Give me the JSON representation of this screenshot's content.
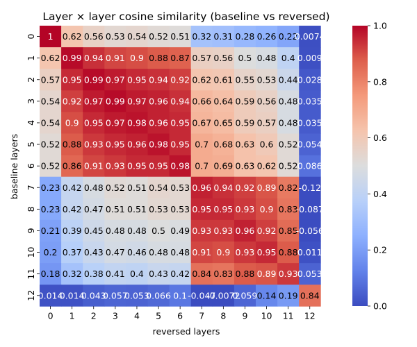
{
  "chart_data": {
    "type": "heatmap",
    "title": "Layer × layer cosine similarity (baseline vs reversed)",
    "xlabel": "reversed layers",
    "ylabel": "baseline layers",
    "x_categories": [
      "0",
      "1",
      "2",
      "3",
      "4",
      "5",
      "6",
      "7",
      "8",
      "9",
      "10",
      "11",
      "12"
    ],
    "y_categories": [
      "0",
      "1",
      "2",
      "3",
      "4",
      "5",
      "6",
      "7",
      "8",
      "9",
      "10",
      "11",
      "12"
    ],
    "values": [
      [
        1,
        0.62,
        0.56,
        0.53,
        0.54,
        0.52,
        0.51,
        0.32,
        0.31,
        0.28,
        0.26,
        0.22,
        0.0074
      ],
      [
        0.62,
        0.99,
        0.94,
        0.91,
        0.9,
        0.88,
        0.87,
        0.57,
        0.56,
        0.5,
        0.48,
        0.4,
        0.009
      ],
      [
        0.57,
        0.95,
        0.99,
        0.97,
        0.95,
        0.94,
        0.92,
        0.62,
        0.61,
        0.55,
        0.53,
        0.44,
        0.028
      ],
      [
        0.54,
        0.92,
        0.97,
        0.99,
        0.97,
        0.96,
        0.94,
        0.66,
        0.64,
        0.59,
        0.56,
        0.48,
        0.035
      ],
      [
        0.54,
        0.9,
        0.95,
        0.97,
        0.98,
        0.96,
        0.95,
        0.67,
        0.65,
        0.59,
        0.57,
        0.48,
        0.035
      ],
      [
        0.52,
        0.88,
        0.93,
        0.95,
        0.96,
        0.98,
        0.95,
        0.7,
        0.68,
        0.63,
        0.6,
        0.52,
        0.054
      ],
      [
        0.52,
        0.86,
        0.91,
        0.93,
        0.95,
        0.95,
        0.98,
        0.7,
        0.69,
        0.63,
        0.62,
        0.52,
        0.086
      ],
      [
        0.23,
        0.42,
        0.48,
        0.52,
        0.51,
        0.54,
        0.53,
        0.96,
        0.94,
        0.92,
        0.89,
        0.82,
        -0.12
      ],
      [
        0.23,
        0.42,
        0.47,
        0.51,
        0.51,
        0.53,
        0.53,
        0.95,
        0.95,
        0.93,
        0.9,
        0.83,
        -0.087
      ],
      [
        0.21,
        0.39,
        0.45,
        0.48,
        0.48,
        0.5,
        0.49,
        0.93,
        0.93,
        0.96,
        0.92,
        0.85,
        -0.056
      ],
      [
        0.2,
        0.37,
        0.43,
        0.47,
        0.46,
        0.48,
        0.48,
        0.91,
        0.9,
        0.93,
        0.95,
        0.88,
        0.011
      ],
      [
        0.18,
        0.32,
        0.38,
        0.41,
        0.4,
        0.43,
        0.42,
        0.84,
        0.83,
        0.88,
        0.89,
        0.93,
        0.053
      ],
      [
        0.014,
        0.014,
        0.043,
        0.057,
        0.053,
        0.066,
        0.1,
        -0.047,
        -0.0072,
        0.059,
        0.14,
        0.19,
        0.84
      ]
    ],
    "cell_labels": [
      [
        "1",
        "0.62",
        "0.56",
        "0.53",
        "0.54",
        "0.52",
        "0.51",
        "0.32",
        "0.31",
        "0.28",
        "0.26",
        "0.22",
        "0.0074"
      ],
      [
        "0.62",
        "0.99",
        "0.94",
        "0.91",
        "0.9",
        "0.88",
        "0.87",
        "0.57",
        "0.56",
        "0.5",
        "0.48",
        "0.4",
        "0.009"
      ],
      [
        "0.57",
        "0.95",
        "0.99",
        "0.97",
        "0.95",
        "0.94",
        "0.92",
        "0.62",
        "0.61",
        "0.55",
        "0.53",
        "0.44",
        "0.028"
      ],
      [
        "0.54",
        "0.92",
        "0.97",
        "0.99",
        "0.97",
        "0.96",
        "0.94",
        "0.66",
        "0.64",
        "0.59",
        "0.56",
        "0.48",
        "0.035"
      ],
      [
        "0.54",
        "0.9",
        "0.95",
        "0.97",
        "0.98",
        "0.96",
        "0.95",
        "0.67",
        "0.65",
        "0.59",
        "0.57",
        "0.48",
        "0.035"
      ],
      [
        "0.52",
        "0.88",
        "0.93",
        "0.95",
        "0.96",
        "0.98",
        "0.95",
        "0.7",
        "0.68",
        "0.63",
        "0.6",
        "0.52",
        "0.054"
      ],
      [
        "0.52",
        "0.86",
        "0.91",
        "0.93",
        "0.95",
        "0.95",
        "0.98",
        "0.7",
        "0.69",
        "0.63",
        "0.62",
        "0.52",
        "0.086"
      ],
      [
        "0.23",
        "0.42",
        "0.48",
        "0.52",
        "0.51",
        "0.54",
        "0.53",
        "0.96",
        "0.94",
        "0.92",
        "0.89",
        "0.82",
        "-0.12"
      ],
      [
        "0.23",
        "0.42",
        "0.47",
        "0.51",
        "0.51",
        "0.53",
        "0.53",
        "0.95",
        "0.95",
        "0.93",
        "0.9",
        "0.83",
        "-0.087"
      ],
      [
        "0.21",
        "0.39",
        "0.45",
        "0.48",
        "0.48",
        "0.5",
        "0.49",
        "0.93",
        "0.93",
        "0.96",
        "0.92",
        "0.85",
        "-0.056"
      ],
      [
        "0.2",
        "0.37",
        "0.43",
        "0.47",
        "0.46",
        "0.48",
        "0.48",
        "0.91",
        "0.9",
        "0.93",
        "0.95",
        "0.88",
        "0.011"
      ],
      [
        "0.18",
        "0.32",
        "0.38",
        "0.41",
        "0.4",
        "0.43",
        "0.42",
        "0.84",
        "0.83",
        "0.88",
        "0.89",
        "0.93",
        "0.053"
      ],
      [
        "0.014",
        "0.014",
        "0.043",
        "0.057",
        "0.053",
        "0.066",
        "0.1",
        "-0.047",
        "-0.0072",
        "0.059",
        "0.14",
        "0.19",
        "0.84"
      ]
    ],
    "color_range": [
      0,
      1
    ],
    "colormap": "coolwarm",
    "colorbar_ticks": [
      "0.0",
      "0.2",
      "0.4",
      "0.6",
      "0.8",
      "1.0"
    ],
    "colorbar_tick_values": [
      0,
      0.2,
      0.4,
      0.6,
      0.8,
      1.0
    ],
    "grid": false,
    "colormap_stops": [
      "#3b4cc0",
      "#6282ea",
      "#8db0fe",
      "#b8d0f9",
      "#dcdddd",
      "#f5c4ad",
      "#f49a7b",
      "#de604d",
      "#b40426"
    ]
  }
}
